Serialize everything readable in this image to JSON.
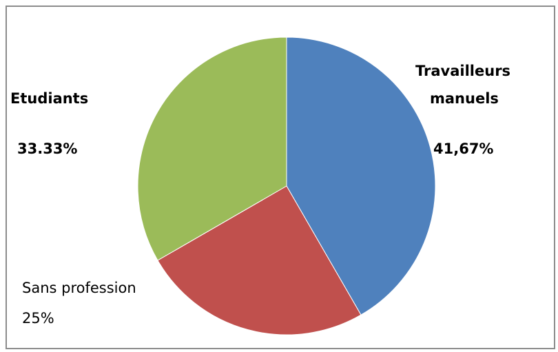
{
  "chart_data": {
    "type": "pie",
    "title": "",
    "slices": [
      {
        "category": "Travailleurs manuels",
        "label_lines": [
          "Travailleurs",
          "manuels"
        ],
        "value_label": "41,67%",
        "value": 41.67,
        "color": "#4f81bd"
      },
      {
        "category": "Sans profession",
        "label_lines": [
          "Sans profession"
        ],
        "value_label": "25%",
        "value": 25,
        "color": "#c0504d"
      },
      {
        "category": "Etudiants",
        "label_lines": [
          "Etudiants"
        ],
        "value_label": "33.33%",
        "value": 33.33,
        "color": "#9bbb59"
      }
    ],
    "legend": "none",
    "start": "top",
    "direction": "clockwise"
  }
}
